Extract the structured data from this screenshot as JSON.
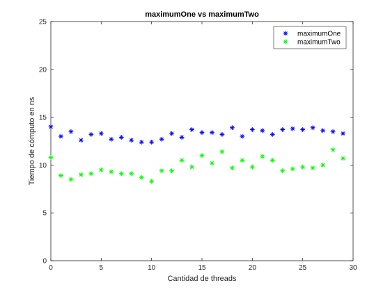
{
  "chart_data": {
    "type": "scatter",
    "title": "maximumOne vs maximumTwo",
    "xlabel": "Cantidad de threads",
    "ylabel": "Tiempo de cómputo en ns",
    "xlim": [
      0,
      30
    ],
    "ylim": [
      0,
      25
    ],
    "xticks": [
      0,
      5,
      10,
      15,
      20,
      25,
      30
    ],
    "yticks": [
      0,
      5,
      10,
      15,
      20,
      25
    ],
    "grid": false,
    "legend_position": "top-right",
    "marker": "*",
    "x": [
      0,
      1,
      2,
      3,
      4,
      5,
      6,
      7,
      8,
      9,
      10,
      11,
      12,
      13,
      14,
      15,
      16,
      17,
      18,
      19,
      20,
      21,
      22,
      23,
      24,
      25,
      26,
      27,
      28,
      29
    ],
    "series": [
      {
        "name": "maximumOne",
        "color": "#0000ff",
        "values": [
          14.0,
          13.0,
          13.5,
          12.6,
          13.2,
          13.3,
          12.7,
          12.9,
          12.6,
          12.4,
          12.4,
          12.7,
          13.3,
          12.9,
          13.7,
          13.4,
          13.4,
          13.2,
          13.9,
          13.0,
          13.7,
          13.6,
          13.2,
          13.7,
          13.8,
          13.7,
          13.9,
          13.6,
          13.5,
          13.3
        ]
      },
      {
        "name": "maximumTwo",
        "color": "#00ff00",
        "values": [
          10.8,
          8.9,
          8.5,
          9.0,
          9.1,
          9.5,
          9.3,
          9.1,
          9.1,
          8.7,
          8.3,
          9.4,
          9.4,
          10.5,
          9.8,
          11.0,
          10.2,
          11.4,
          9.7,
          10.5,
          9.8,
          10.9,
          10.5,
          9.4,
          9.6,
          9.8,
          9.7,
          10.0,
          11.6,
          10.7
        ]
      }
    ]
  }
}
